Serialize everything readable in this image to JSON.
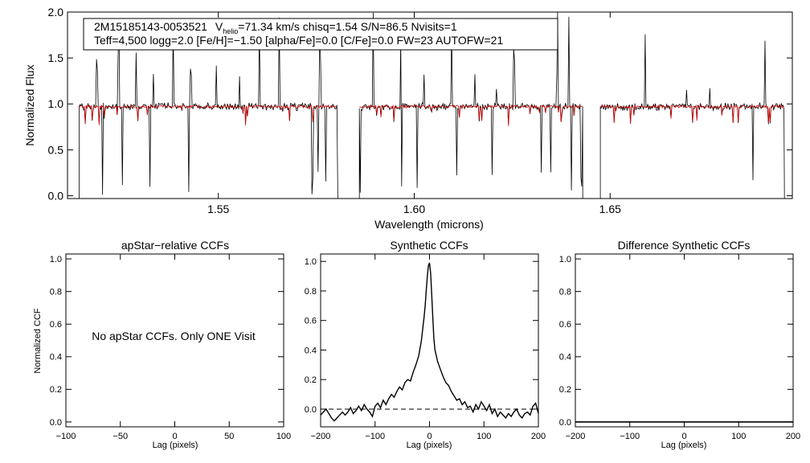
{
  "chart_data": [
    {
      "id": "spectrum",
      "type": "line",
      "title": "",
      "info": {
        "star_id": "2M15185143-0053521",
        "v_label": "V",
        "v_sub": "helio",
        "v_rest": "=71.34 km/s  chisq=1.54  S/N=86.5  Nvisits=1",
        "line2": "Teff=4,500 logg=2.0 [Fe/H]=−1.50 [alpha/Fe]=0.0 [C/Fe]=0.0 FW=23 AUTOFW=21"
      },
      "xlabel": "Wavelength (microns)",
      "ylabel": "Normalized Flux",
      "xlim": [
        1.5115,
        1.6965
      ],
      "ylim": [
        -0.03,
        2.0
      ],
      "xticks": [
        1.55,
        1.6,
        1.65
      ],
      "xtick_labels": [
        "1.55",
        "1.60",
        "1.65"
      ],
      "yticks": [
        0.0,
        0.5,
        1.0,
        1.5,
        2.0
      ],
      "ytick_labels": [
        "0.0",
        "0.5",
        "1.0",
        "1.5",
        "2.0"
      ],
      "segments": [
        [
          1.5145,
          1.5805
        ],
        [
          1.586,
          1.643
        ],
        [
          1.6475,
          1.6945
        ]
      ],
      "continuum": 0.97,
      "emission_spikes": [
        1.519,
        1.5245,
        1.529,
        1.5335,
        1.5385,
        1.543,
        1.5495,
        1.5555,
        1.5605,
        1.5655,
        1.576,
        1.5895,
        1.5965,
        1.6025,
        1.6095,
        1.6155,
        1.621,
        1.6255,
        1.6325,
        1.6365,
        1.6395,
        1.659,
        1.6695,
        1.6755,
        1.6895
      ],
      "absorption_lines": [
        1.5205,
        1.5255,
        1.5325,
        1.5425,
        1.574,
        1.5755,
        1.5775,
        1.5862,
        1.5968,
        1.6008,
        1.6108,
        1.6198,
        1.6325,
        1.6348,
        1.6402,
        1.6425,
        1.6428,
        1.6865,
        1.6945
      ],
      "series": [
        {
          "name": "Observed spectrum",
          "color": "#000000"
        },
        {
          "name": "Best-fit synthetic spectrum",
          "color": "#d00000"
        }
      ]
    },
    {
      "id": "apstar-ccf",
      "type": "line",
      "title": "apStar−relative CCFs",
      "message": "No apStar CCFs.  Only ONE Visit",
      "xlabel": "Lag (pixels)",
      "ylabel": "Normalized CCF",
      "xlim": [
        -100,
        100
      ],
      "ylim": [
        -0.03,
        1.03
      ],
      "xticks": [
        -100,
        -50,
        0,
        50,
        100
      ],
      "xtick_labels": [
        "−100",
        "−50",
        "0",
        "50",
        "100"
      ],
      "yticks": [
        0.0,
        0.2,
        0.4,
        0.6,
        0.8,
        1.0
      ],
      "ytick_labels": [
        "0.0",
        "0.2",
        "0.4",
        "0.6",
        "0.8",
        "1.0"
      ],
      "series": []
    },
    {
      "id": "synthetic-ccf",
      "type": "line",
      "title": "Synthetic CCFs",
      "xlabel": "Lag (pixels)",
      "ylabel": "",
      "xlim": [
        -200,
        200
      ],
      "ylim": [
        -0.12,
        1.05
      ],
      "xticks": [
        -200,
        -100,
        0,
        100,
        200
      ],
      "xtick_labels": [
        "−200",
        "−100",
        "0",
        "100",
        "200"
      ],
      "yticks": [
        0.0,
        0.2,
        0.4,
        0.6,
        0.8,
        1.0
      ],
      "ytick_labels": [
        "0.0",
        "0.2",
        "0.4",
        "0.6",
        "0.8",
        "1.0"
      ],
      "zero_line": 0.0,
      "series": [
        {
          "name": "Synthetic CCF",
          "color": "#000000",
          "x": [
            -200,
            -195,
            -190,
            -185,
            -180,
            -175,
            -170,
            -165,
            -160,
            -155,
            -150,
            -145,
            -140,
            -135,
            -130,
            -125,
            -120,
            -115,
            -110,
            -105,
            -100,
            -95,
            -90,
            -85,
            -80,
            -75,
            -70,
            -65,
            -60,
            -55,
            -50,
            -45,
            -40,
            -35,
            -30,
            -25,
            -20,
            -15,
            -10,
            -8,
            -6,
            -4,
            -2,
            0,
            2,
            4,
            6,
            8,
            10,
            15,
            20,
            25,
            30,
            35,
            40,
            45,
            50,
            55,
            60,
            65,
            70,
            75,
            80,
            85,
            90,
            95,
            100,
            105,
            110,
            115,
            120,
            125,
            130,
            135,
            140,
            145,
            150,
            155,
            160,
            165,
            170,
            175,
            180,
            185,
            190,
            195,
            200
          ],
          "y": [
            -0.04,
            -0.02,
            0.0,
            -0.03,
            -0.06,
            -0.08,
            -0.06,
            -0.04,
            -0.02,
            -0.04,
            -0.02,
            0.01,
            -0.03,
            -0.01,
            0.02,
            -0.01,
            0.03,
            0.0,
            -0.02,
            -0.05,
            0.02,
            0.04,
            0.01,
            0.06,
            0.03,
            0.07,
            0.1,
            0.08,
            0.12,
            0.15,
            0.13,
            0.18,
            0.2,
            0.19,
            0.25,
            0.3,
            0.36,
            0.46,
            0.62,
            0.7,
            0.8,
            0.9,
            0.97,
            0.99,
            0.92,
            0.78,
            0.62,
            0.48,
            0.4,
            0.32,
            0.27,
            0.22,
            0.18,
            0.16,
            0.12,
            0.09,
            0.06,
            0.07,
            0.03,
            0.05,
            0.01,
            0.02,
            -0.02,
            0.03,
            0.0,
            0.05,
            0.02,
            -0.01,
            0.03,
            -0.03,
            0.0,
            -0.05,
            -0.02,
            -0.04,
            -0.06,
            -0.03,
            -0.05,
            -0.02,
            0.0,
            -0.04,
            -0.06,
            -0.03,
            -0.02,
            -0.04,
            0.02,
            0.04,
            -0.03
          ]
        }
      ]
    },
    {
      "id": "difference-ccf",
      "type": "line",
      "title": "Difference Synthetic CCFs",
      "xlabel": "Lag (pixels)",
      "ylabel": "",
      "xlim": [
        -200,
        200
      ],
      "ylim": [
        -0.03,
        1.03
      ],
      "xticks": [
        -200,
        -100,
        0,
        100,
        200
      ],
      "xtick_labels": [
        "−200",
        "−100",
        "0",
        "100",
        "200"
      ],
      "yticks": [
        0.0,
        0.2,
        0.4,
        0.6,
        0.8,
        1.0
      ],
      "ytick_labels": [
        "0.0",
        "0.2",
        "0.4",
        "0.6",
        "0.8",
        "1.0"
      ],
      "series": [
        {
          "name": "Difference CCF",
          "color": "#000000",
          "x": [
            -200,
            200
          ],
          "y": [
            0.0,
            0.0
          ]
        }
      ]
    }
  ]
}
